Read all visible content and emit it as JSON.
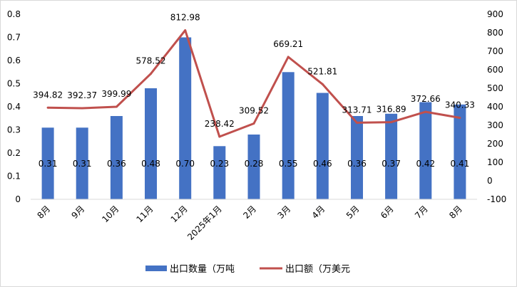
{
  "chart_data": {
    "type": "bar",
    "categories": [
      "8月",
      "9月",
      "10月",
      "11月",
      "12月",
      "2025年1月",
      "2月",
      "3月",
      "4月",
      "5月",
      "6月",
      "7月",
      "8月"
    ],
    "series": [
      {
        "name": "出口数量（万吨",
        "type": "bar",
        "axis": "left",
        "color": "#4472c4",
        "values": [
          0.31,
          0.31,
          0.36,
          0.48,
          0.7,
          0.23,
          0.28,
          0.55,
          0.46,
          0.36,
          0.37,
          0.42,
          0.41
        ],
        "labels": [
          "0.31",
          "0.31",
          "0.36",
          "0.48",
          "0.70",
          "0.23",
          "0.28",
          "0.55",
          "0.46",
          "0.36",
          "0.37",
          "0.42",
          "0.41"
        ]
      },
      {
        "name": "出口额（万美元",
        "type": "line",
        "axis": "right",
        "color": "#c0504d",
        "values": [
          394.82,
          392.37,
          399.99,
          578.52,
          812.98,
          238.42,
          309.52,
          669.21,
          521.81,
          313.71,
          316.89,
          372.66,
          340.33
        ],
        "labels": [
          "394.82",
          "392.37",
          "399.99",
          "578.52",
          "812.98",
          "238.42",
          "309.52",
          "669.21",
          "521.81",
          "313.71",
          "316.89",
          "372.66",
          "340.33"
        ]
      }
    ],
    "y_left": {
      "range": [
        0,
        0.8
      ],
      "ticks": [
        "0",
        "0.1",
        "0.2",
        "0.3",
        "0.4",
        "0.5",
        "0.6",
        "0.7",
        "0.8"
      ]
    },
    "y_right": {
      "range": [
        -100,
        900
      ],
      "ticks": [
        "-100",
        "0",
        "100",
        "200",
        "300",
        "400",
        "500",
        "600",
        "700",
        "800",
        "900"
      ]
    },
    "grid": false,
    "legend_position": "bottom"
  }
}
